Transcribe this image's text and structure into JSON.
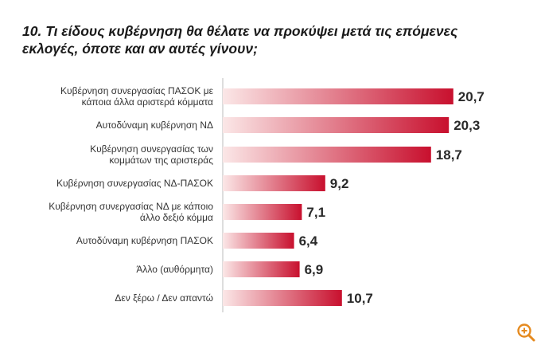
{
  "title": "10. Τι είδους κυβέρνηση θα θέλατε να προκύψει μετά τις επόμενες εκλογές, όποτε και αν αυτές γίνουν;",
  "zoom_icon": "zoom-in-icon",
  "colors": {
    "bar_start": "#fbe7e7",
    "bar_end": "#c8102e",
    "accent": "#e58a1f"
  },
  "chart_data": {
    "type": "bar",
    "orientation": "horizontal",
    "categories": [
      [
        "Κυβέρνηση συνεργασίας ΠΑΣΟΚ με",
        "κάποια άλλα αριστερά κόμματα"
      ],
      [
        "Αυτοδύναμη κυβέρνηση ΝΔ"
      ],
      [
        "Κυβέρνηση συνεργασίας των",
        "κομμάτων της αριστεράς"
      ],
      [
        "Κυβέρνηση συνεργασίας ΝΔ-ΠΑΣΟΚ"
      ],
      [
        "Κυβέρνηση συνεργασίας ΝΔ με κάποιο",
        "άλλο δεξιό κόμμα"
      ],
      [
        "Αυτοδύναμη κυβέρνηση ΠΑΣΟΚ"
      ],
      [
        "Άλλο (αυθόρμητα)"
      ],
      [
        "Δεν ξέρω / Δεν απαντώ"
      ]
    ],
    "values": [
      20.7,
      20.3,
      18.7,
      9.2,
      7.1,
      6.4,
      6.9,
      10.7
    ],
    "value_labels": [
      "20,7",
      "20,3",
      "18,7",
      "9,2",
      "7,1",
      "6,4",
      "6,9",
      "10,7"
    ],
    "xlim": [
      0,
      25
    ],
    "grid": false,
    "legend": "none"
  }
}
